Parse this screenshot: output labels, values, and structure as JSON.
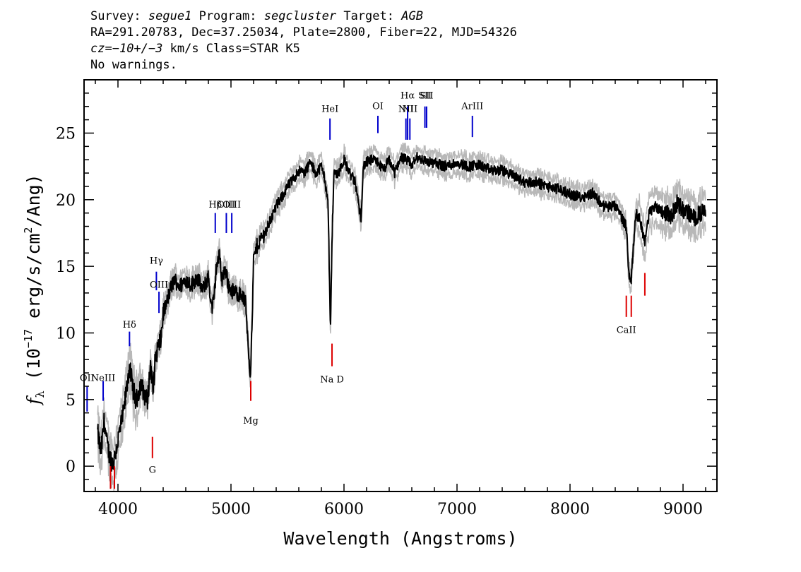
{
  "header": {
    "survey_label": "Survey:",
    "survey": "segue1",
    "program_label": "Program:",
    "program": "segcluster",
    "target_label": "Target:",
    "target": "AGB",
    "line2": "RA=291.20783, Dec=37.25034, Plate=2800, Fiber=22, MJD=54326",
    "cz_label": "cz=",
    "cz_value": "−10+/−3",
    "cz_rest": " km/s Class=STAR K5",
    "warnings": "No warnings."
  },
  "colors": {
    "flux": "#000000",
    "error": "#b8b8b8",
    "emission": "#0000cc",
    "absorption": "#dd0000"
  },
  "chart_data": {
    "type": "line",
    "xlabel": "Wavelength (Angstroms)",
    "ylabel_parts": [
      "f",
      "λ",
      " (10",
      "−17",
      " erg/s/cm",
      "2",
      "/Ang)"
    ],
    "xlim": [
      3700,
      9300
    ],
    "ylim": [
      -1.9,
      29
    ],
    "xticks": [
      4000,
      5000,
      6000,
      7000,
      8000,
      9000
    ],
    "yticks": [
      0,
      5,
      10,
      15,
      20,
      25
    ],
    "x_minor_step": 200,
    "y_minor_step": 1,
    "series": [
      {
        "role": "flux",
        "x": [
          3820,
          3850,
          3880,
          3900,
          3930,
          3960,
          3990,
          4020,
          4050,
          4080,
          4100,
          4130,
          4160,
          4200,
          4230,
          4260,
          4290,
          4310,
          4330,
          4350,
          4380,
          4400,
          4430,
          4460,
          4500,
          4550,
          4600,
          4650,
          4700,
          4750,
          4800,
          4830,
          4850,
          4870,
          4900,
          4920,
          4950,
          4980,
          5000,
          5050,
          5100,
          5130,
          5150,
          5170,
          5185,
          5200,
          5230,
          5260,
          5300,
          5350,
          5400,
          5450,
          5500,
          5550,
          5600,
          5650,
          5700,
          5750,
          5800,
          5830,
          5860,
          5880,
          5893,
          5910,
          5950,
          6000,
          6050,
          6100,
          6150,
          6170,
          6200,
          6250,
          6300,
          6350,
          6400,
          6450,
          6500,
          6550,
          6600,
          6650,
          6700,
          6750,
          6800,
          6900,
          7000,
          7100,
          7200,
          7300,
          7400,
          7500,
          7600,
          7700,
          7800,
          7900,
          8000,
          8100,
          8200,
          8300,
          8400,
          8450,
          8498,
          8520,
          8542,
          8580,
          8620,
          8662,
          8700,
          8750,
          8800,
          8850,
          8900,
          8950,
          9000,
          9050,
          9100,
          9150,
          9200
        ],
        "y": [
          2.5,
          1.0,
          3.5,
          1.8,
          0.6,
          0.2,
          1.5,
          2.8,
          4.0,
          6.0,
          7.5,
          6.0,
          4.8,
          6.2,
          5.5,
          4.8,
          7.8,
          5.5,
          8.0,
          8.8,
          9.5,
          11.5,
          12.2,
          13.2,
          14.0,
          13.5,
          14.0,
          13.6,
          14.2,
          13.2,
          14.2,
          11.8,
          12.5,
          15.0,
          15.8,
          14.0,
          14.8,
          13.5,
          13.2,
          13.0,
          12.8,
          12.2,
          9.5,
          6.8,
          10.0,
          15.5,
          16.5,
          17.0,
          17.5,
          18.5,
          19.5,
          20.2,
          21.0,
          21.5,
          22.2,
          22.0,
          22.8,
          22.0,
          22.5,
          21.6,
          19.5,
          10.0,
          16.5,
          22.0,
          22.0,
          23.0,
          22.0,
          21.3,
          18.5,
          22.5,
          22.8,
          23.0,
          22.8,
          22.2,
          23.0,
          22.0,
          23.2,
          23.0,
          22.6,
          23.2,
          23.0,
          22.8,
          22.8,
          22.5,
          22.8,
          22.5,
          22.6,
          22.2,
          22.2,
          21.8,
          21.3,
          21.3,
          21.0,
          20.8,
          20.4,
          20.2,
          20.5,
          19.5,
          19.5,
          18.8,
          18.0,
          14.5,
          14.0,
          19.0,
          18.5,
          16.8,
          19.0,
          19.5,
          19.3,
          19.0,
          18.8,
          19.8,
          19.2,
          19.0,
          18.6,
          19.0,
          19.0
        ]
      }
    ],
    "emission_lines": [
      {
        "label": "OII",
        "wave": 3727,
        "y_from": 4.1,
        "y_to": 6.0,
        "label_y": 6.4
      },
      {
        "label": "NeIII",
        "wave": 3869,
        "y_from": 4.9,
        "y_to": 6.4,
        "label_y": 6.4
      },
      {
        "label": "Hδ",
        "wave": 4102,
        "y_from": 9.0,
        "y_to": 10.1,
        "label_y": 10.4
      },
      {
        "label": "Hγ",
        "wave": 4340,
        "y_from": 13.2,
        "y_to": 14.6,
        "label_y": 15.2
      },
      {
        "label": "OIII",
        "wave": 4363,
        "y_from": 11.5,
        "y_to": 13.1,
        "label_y": 13.4
      },
      {
        "label": "Hβ",
        "wave": 4861,
        "y_from": 17.5,
        "y_to": 19.0,
        "label_y": 19.4
      },
      {
        "label": "OIII",
        "wave": 4959,
        "y_from": 17.5,
        "y_to": 19.0,
        "label_y": 19.4
      },
      {
        "label": "OIII",
        "wave": 5007,
        "y_from": 17.5,
        "y_to": 19.0,
        "label_y": 19.4
      },
      {
        "label": "HeI",
        "wave": 5876,
        "y_from": 24.5,
        "y_to": 26.1,
        "label_y": 26.6
      },
      {
        "label": "OI",
        "wave": 6300,
        "y_from": 25.0,
        "y_to": 26.3,
        "label_y": 26.8
      },
      {
        "label": "NII",
        "wave": 6548,
        "y_from": 24.5,
        "y_to": 26.1,
        "label_y": 26.6
      },
      {
        "label": "Hα",
        "wave": 6563,
        "y_from": 24.5,
        "y_to": 27.0,
        "label_y": 27.6
      },
      {
        "label": "NII",
        "wave": 6583,
        "y_from": 24.5,
        "y_to": 26.1,
        "label_y": 26.6
      },
      {
        "label": "SII",
        "wave": 6716,
        "y_from": 25.4,
        "y_to": 27.0,
        "label_y": 27.6
      },
      {
        "label": "SII",
        "wave": 6731,
        "y_from": 25.4,
        "y_to": 27.0,
        "label_y": 27.6
      },
      {
        "label": "ArIII",
        "wave": 7136,
        "y_from": 24.7,
        "y_to": 26.3,
        "label_y": 26.8
      }
    ],
    "absorption_lines": [
      {
        "label": "CaII",
        "wave": 3934,
        "y_from": -1.7,
        "y_to": 0.0,
        "label_y": null
      },
      {
        "label": "CaII",
        "wave": 3969,
        "y_from": -1.7,
        "y_to": 0.0,
        "label_y": null
      },
      {
        "label": "G",
        "wave": 4305,
        "y_from": 0.6,
        "y_to": 2.2,
        "label_y": -0.5
      },
      {
        "label": "Mg",
        "wave": 5175,
        "y_from": 4.9,
        "y_to": 6.4,
        "label_y": 3.2
      },
      {
        "label": "Na D",
        "wave": 5894,
        "y_from": 7.5,
        "y_to": 9.2,
        "label_y": 6.3
      },
      {
        "label": "CaII",
        "wave": 8498,
        "y_from": 11.2,
        "y_to": 12.8,
        "label_y": 10.0
      },
      {
        "label": "CaII",
        "wave": 8542,
        "y_from": 11.2,
        "y_to": 12.8,
        "label_y": null
      },
      {
        "label": "CaII",
        "wave": 8662,
        "y_from": 12.8,
        "y_to": 14.5,
        "label_y": null
      }
    ]
  }
}
